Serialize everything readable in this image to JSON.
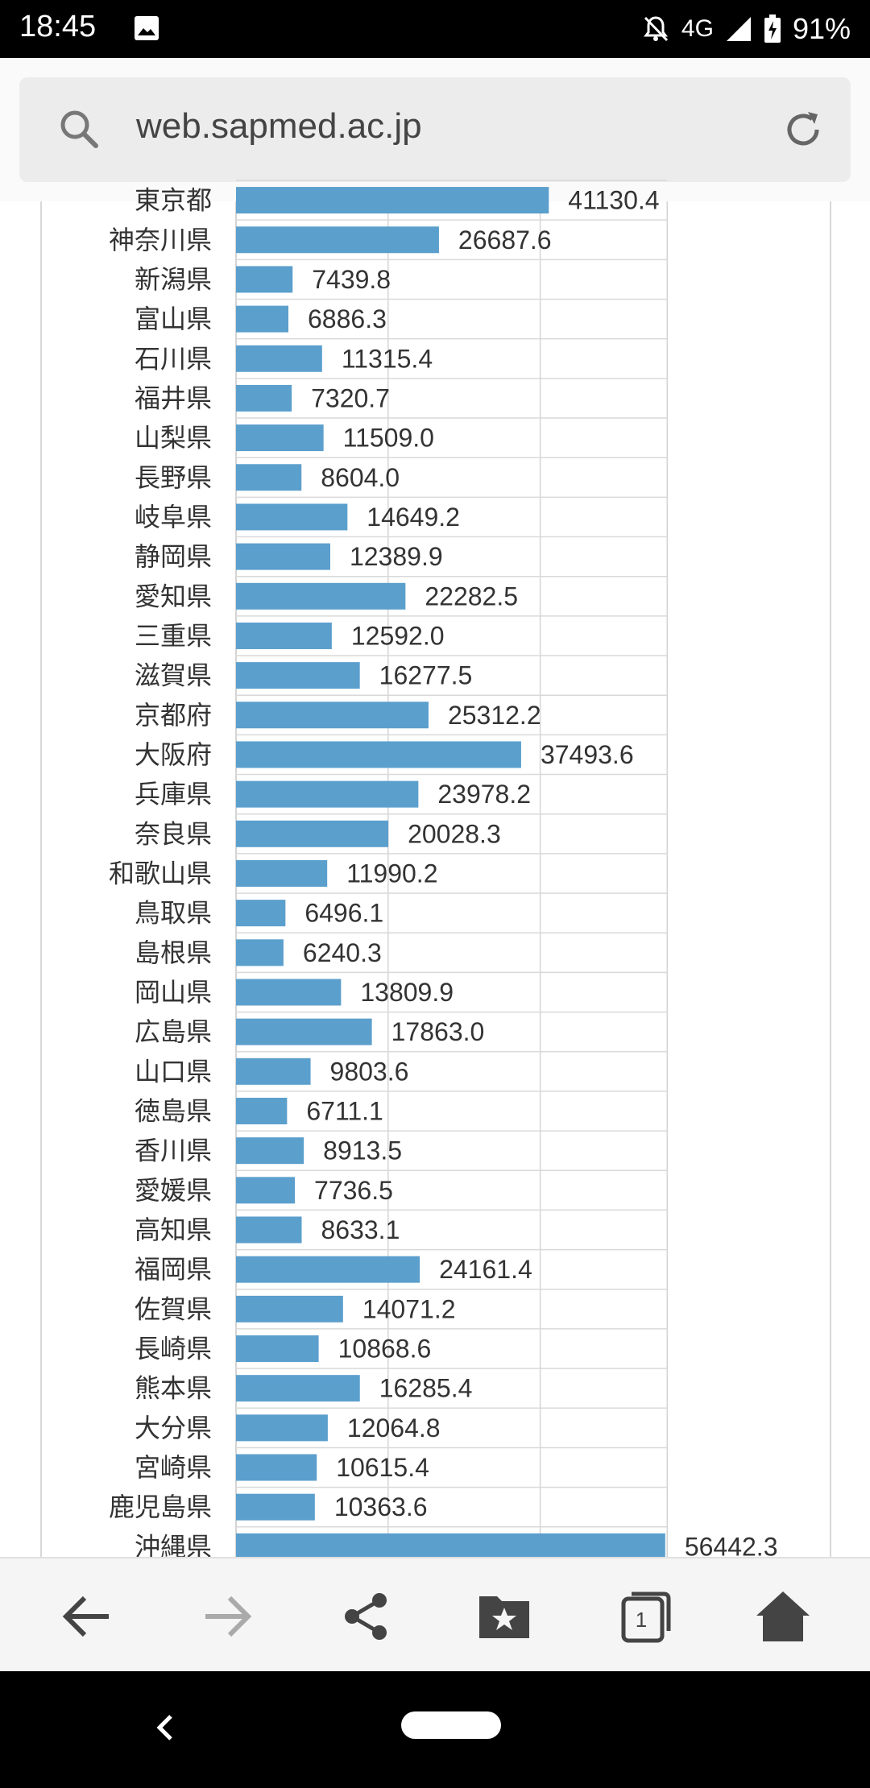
{
  "status_bar": {
    "time": "18:45",
    "network": "4G",
    "battery": "91%",
    "icons": [
      "image-icon",
      "bell-off-icon",
      "signal-icon",
      "battery-charging-icon"
    ]
  },
  "browser": {
    "url": "web.sapmed.ac.jp",
    "icons": [
      "search-icon",
      "reload-icon"
    ]
  },
  "toolbar": {
    "tab_count": "1",
    "icons": [
      "back-arrow-icon",
      "forward-arrow-icon",
      "share-icon",
      "bookmark-folder-icon",
      "tabs-icon",
      "home-icon"
    ]
  },
  "chart_data": {
    "type": "bar",
    "orientation": "horizontal",
    "xlim": [
      0,
      60000
    ],
    "grid": true,
    "bar_color": "#5b9fcd",
    "categories": [
      "東京都",
      "神奈川県",
      "新潟県",
      "富山県",
      "石川県",
      "福井県",
      "山梨県",
      "長野県",
      "岐阜県",
      "静岡県",
      "愛知県",
      "三重県",
      "滋賀県",
      "京都府",
      "大阪府",
      "兵庫県",
      "奈良県",
      "和歌山県",
      "鳥取県",
      "島根県",
      "岡山県",
      "広島県",
      "山口県",
      "徳島県",
      "香川県",
      "愛媛県",
      "高知県",
      "福岡県",
      "佐賀県",
      "長崎県",
      "熊本県",
      "大分県",
      "宮崎県",
      "鹿児島県",
      "沖縄県"
    ],
    "values": [
      41130.4,
      26687.6,
      7439.8,
      6886.3,
      11315.4,
      7320.7,
      11509.0,
      8604.0,
      14649.2,
      12389.9,
      22282.5,
      12592.0,
      16277.5,
      25312.2,
      37493.6,
      23978.2,
      20028.3,
      11990.2,
      6496.1,
      6240.3,
      13809.9,
      17863.0,
      9803.6,
      6711.1,
      8913.5,
      7736.5,
      8633.1,
      24161.4,
      14071.2,
      10868.6,
      16285.4,
      12064.8,
      10615.4,
      10363.6,
      56442.3
    ],
    "value_labels": [
      "41130.4",
      "26687.6",
      "7439.8",
      "6886.3",
      "11315.4",
      "7320.7",
      "11509.0",
      "8604.0",
      "14649.2",
      "12389.9",
      "22282.5",
      "12592.0",
      "16277.5",
      "25312.2",
      "37493.6",
      "23978.2",
      "20028.3",
      "11990.2",
      "6496.1",
      "6240.3",
      "13809.9",
      "17863.0",
      "9803.6",
      "6711.1",
      "8913.5",
      "7736.5",
      "8633.1",
      "24161.4",
      "14071.2",
      "10868.6",
      "16285.4",
      "12064.8",
      "10615.4",
      "10363.6",
      "56442.3"
    ]
  }
}
